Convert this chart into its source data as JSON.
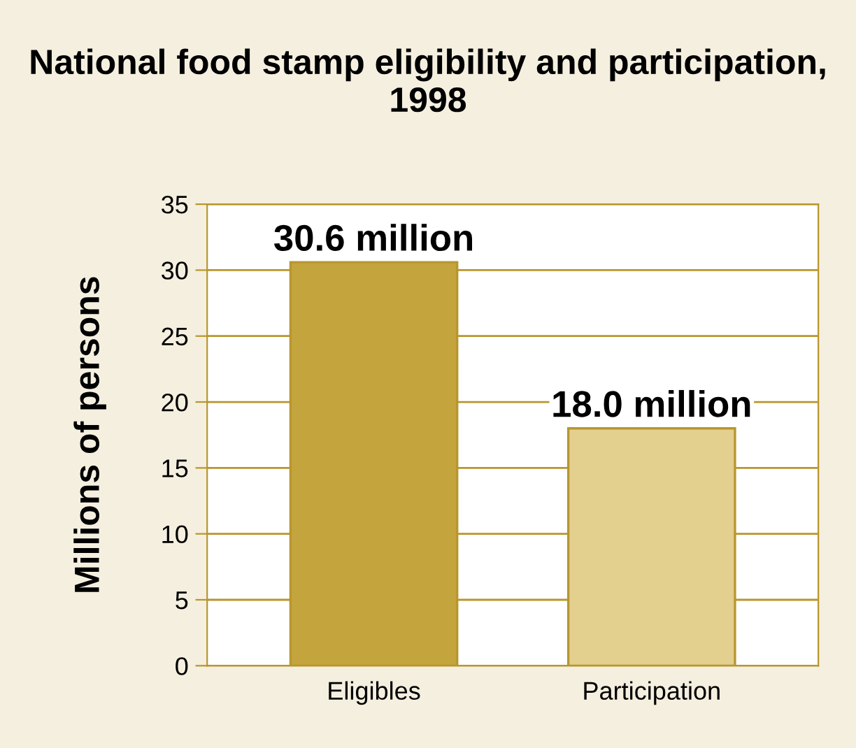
{
  "chart_data": {
    "type": "bar",
    "title": "National food stamp eligibility and participation, 1998",
    "categories": [
      "Eligibles",
      "Participation"
    ],
    "values": [
      30.6,
      18.0
    ],
    "colors": [
      "#c4a43c",
      "#e3cf8e"
    ],
    "value_labels": [
      "30.6 million",
      "18.0 million"
    ],
    "ylabel": "Millions of persons",
    "ylim": [
      0,
      35
    ],
    "yticks": [
      0,
      5,
      10,
      15,
      20,
      25,
      30,
      35
    ],
    "grid": "y"
  }
}
